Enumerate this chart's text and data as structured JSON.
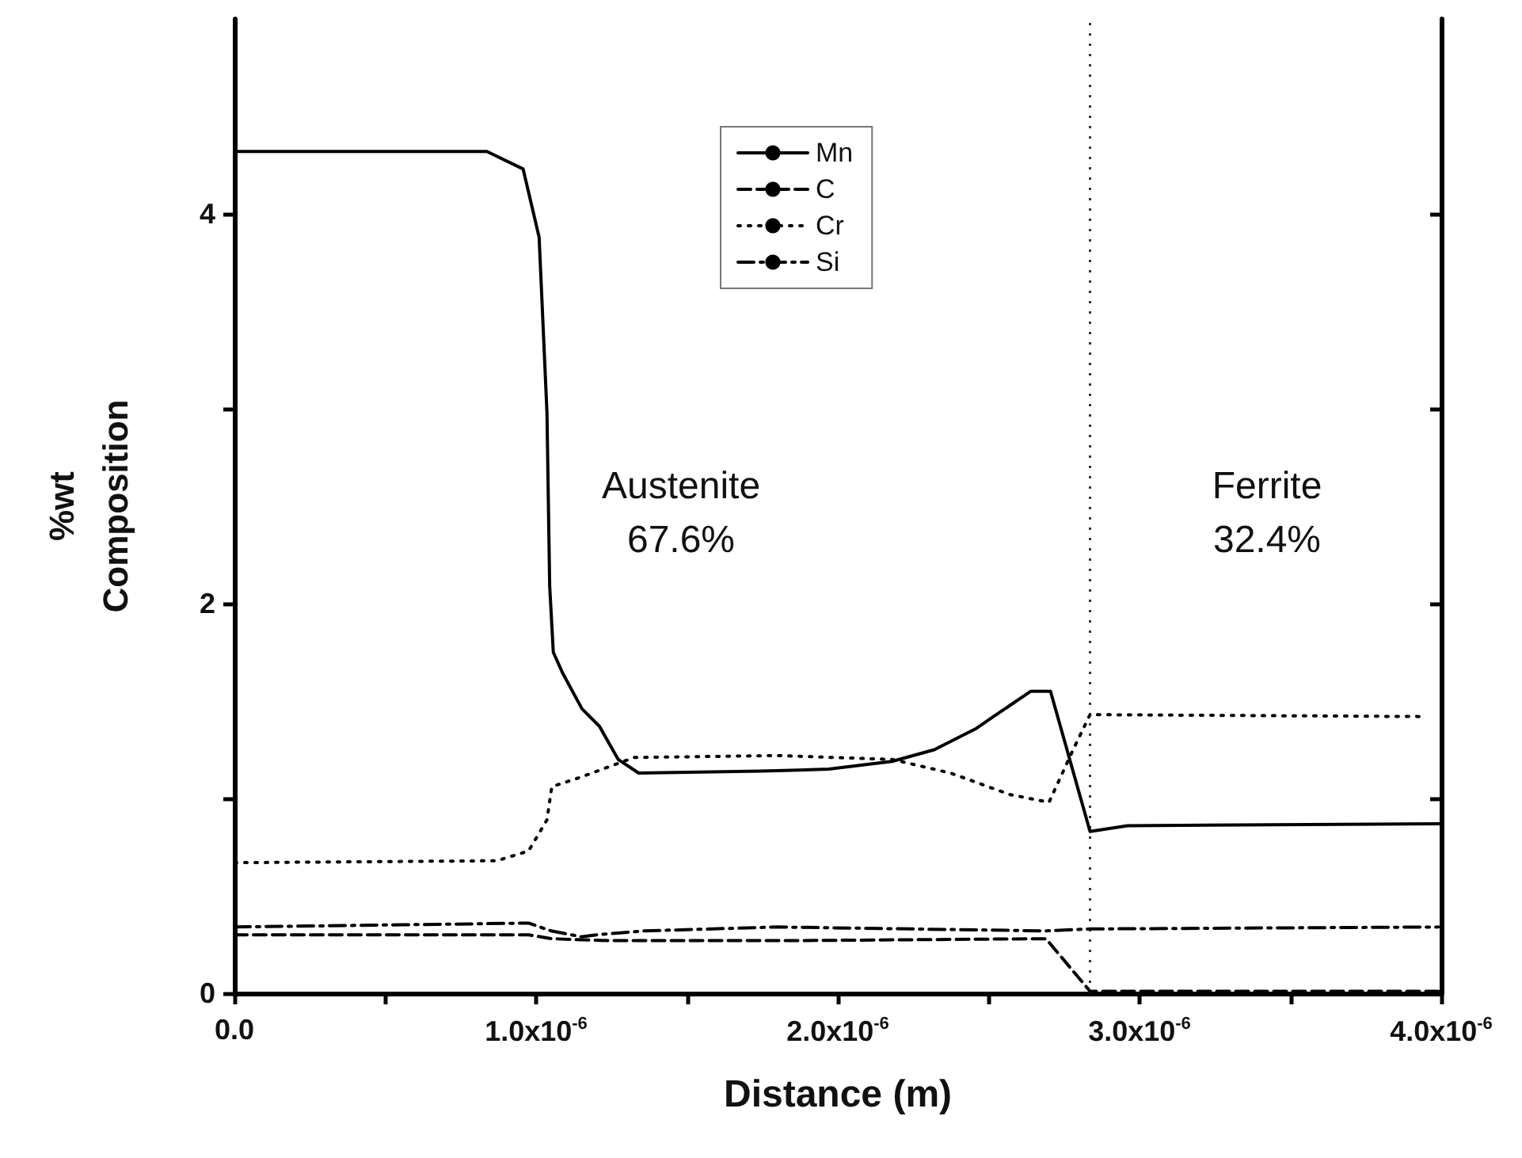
{
  "chart_data": {
    "type": "line",
    "xlabel": "Distance (m)",
    "ylabel": "%wt\nComposition",
    "xlim": [
      0,
      4e-06
    ],
    "ylim": [
      0,
      5
    ],
    "xticks": [
      {
        "value": 0,
        "label": "0.0"
      },
      {
        "value": 5e-07,
        "label": null
      },
      {
        "value": 1e-06,
        "label": "1.0x10$^{-6}$"
      },
      {
        "value": 1.5e-06,
        "label": null
      },
      {
        "value": 2e-06,
        "label": "2.0x10$^{-6}$"
      },
      {
        "value": 2.5e-06,
        "label": null
      },
      {
        "value": 3e-06,
        "label": "3.0x10$^{-6}$"
      },
      {
        "value": 3.5e-06,
        "label": null
      },
      {
        "value": 4e-06,
        "label": "4.0x10$^{-6}$"
      }
    ],
    "yticks": [
      0,
      {
        "value": 1,
        "label": null
      },
      2,
      {
        "value": 3,
        "label": null
      },
      4
    ],
    "grid": false,
    "legend": "top",
    "marker": "none",
    "series": [
      {
        "name": "Mn",
        "color": "#000000",
        "line_style": "solid",
        "x": [
          0,
          8.37e-07,
          9.57e-07,
          1.01e-06,
          1.036e-06,
          1.045e-06,
          1.057e-06,
          1.089e-06,
          1.152e-06,
          1.21e-06,
          1.272e-06,
          1.34e-06,
          1.745e-06,
          1.97e-06,
          2.18e-06,
          2.32e-06,
          2.46e-06,
          2.516e-06,
          2.64e-06,
          2.705e-06,
          2.836e-06,
          2.96e-06,
          4e-06
        ],
        "values": [
          4.32,
          4.32,
          4.23,
          3.88,
          2.98,
          2.09,
          1.75,
          1.64,
          1.46,
          1.37,
          1.2,
          1.13,
          1.14,
          1.15,
          1.19,
          1.25,
          1.36,
          1.42,
          1.55,
          1.55,
          0.83,
          0.86,
          0.87
        ]
      },
      {
        "name": "C",
        "color": "#000000",
        "line_style": "dashed",
        "x": [
          0,
          9.75e-07,
          1.05e-06,
          1.24e-06,
          1.85e-06,
          2.69e-06,
          2.836e-06,
          4e-06
        ],
        "values": [
          0.3,
          0.3,
          0.28,
          0.27,
          0.27,
          0.28,
          0.01,
          0.01
        ]
      },
      {
        "name": "Cr",
        "color": "#000000",
        "line_style": "dotted",
        "x": [
          0,
          8.7e-07,
          9.75e-07,
          1.036e-06,
          1.052e-06,
          1.15e-06,
          1.325e-06,
          1.8e-06,
          2.18e-06,
          2.374e-06,
          2.57e-06,
          2.7e-06,
          2.78e-06,
          2.836e-06,
          3.95e-06
        ],
        "values": [
          0.67,
          0.68,
          0.73,
          0.89,
          1.06,
          1.11,
          1.21,
          1.22,
          1.2,
          1.13,
          1.02,
          0.98,
          1.25,
          1.43,
          1.42
        ]
      },
      {
        "name": "Si",
        "color": "#000000",
        "line_style": "dashdot",
        "x": [
          0,
          9.75e-07,
          1.05e-06,
          1.15e-06,
          1.2e-06,
          1.36e-06,
          1.8e-06,
          2.69e-06,
          2.836e-06,
          3.99e-06
        ],
        "values": [
          0.34,
          0.36,
          0.32,
          0.29,
          0.3,
          0.32,
          0.34,
          0.32,
          0.33,
          0.34
        ]
      }
    ],
    "ref_lines": [
      {
        "axis": "x",
        "value": 2.836e-06,
        "color": "#333333",
        "line_style": "dotted"
      }
    ],
    "annotations": [
      "Austenite\n67.6%",
      "Ferrite\n32.4%"
    ]
  }
}
